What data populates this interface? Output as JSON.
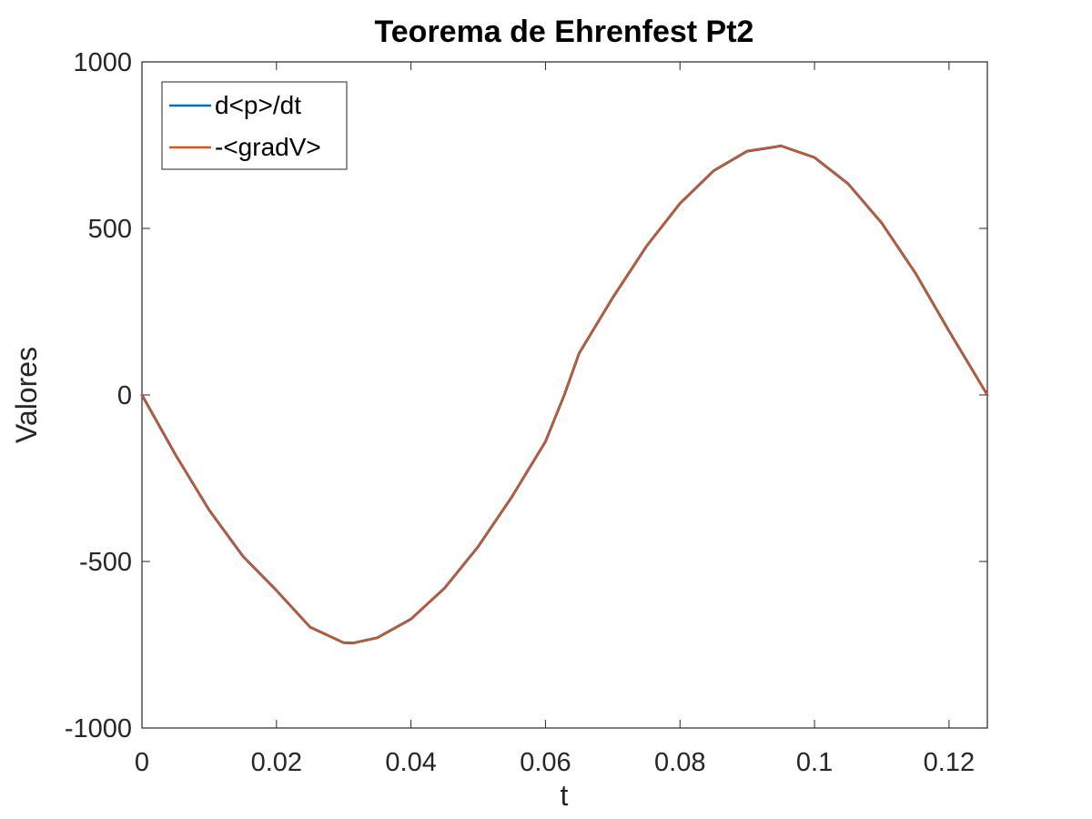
{
  "chart_data": {
    "type": "line",
    "title": "Teorema de Ehrenfest Pt2",
    "xlabel": "t",
    "ylabel": "Valores",
    "xlim": [
      0,
      0.1257
    ],
    "ylim": [
      -1000,
      1000
    ],
    "xticks": [
      0,
      0.02,
      0.04,
      0.06,
      0.08,
      0.1,
      0.12
    ],
    "xtick_labels": [
      "0",
      "0.02",
      "0.04",
      "0.06",
      "0.08",
      "0.1",
      "0.12"
    ],
    "yticks": [
      -1000,
      -500,
      0,
      500,
      1000
    ],
    "ytick_labels": [
      "-1000",
      "-500",
      "0",
      "500",
      "1000"
    ],
    "grid": false,
    "legend_position": "top-left",
    "x": [
      0,
      0.005,
      0.01,
      0.015,
      0.02,
      0.025,
      0.03,
      0.0314,
      0.035,
      0.04,
      0.045,
      0.05,
      0.055,
      0.06,
      0.0628,
      0.065,
      0.07,
      0.075,
      0.08,
      0.085,
      0.09,
      0.0942,
      0.095,
      0.1,
      0.105,
      0.11,
      0.115,
      0.12,
      0.1257
    ],
    "series": [
      {
        "name": "d<p>/dt",
        "color": "#0072BD",
        "values": [
          0,
          -180,
          -346,
          -484,
          -587,
          -697,
          -744,
          -745,
          -729,
          -673,
          -580,
          -455,
          -306,
          -140,
          0,
          125,
          292,
          446,
          575,
          673,
          732,
          745,
          748,
          713,
          634,
          516,
          366,
          192,
          0
        ]
      },
      {
        "name": "-<gradV>",
        "color": "#D95319",
        "values": [
          0,
          -180,
          -346,
          -484,
          -587,
          -697,
          -744,
          -745,
          -729,
          -673,
          -580,
          -455,
          -306,
          -140,
          0,
          125,
          292,
          446,
          575,
          673,
          732,
          745,
          748,
          713,
          634,
          516,
          366,
          192,
          0
        ]
      }
    ]
  }
}
